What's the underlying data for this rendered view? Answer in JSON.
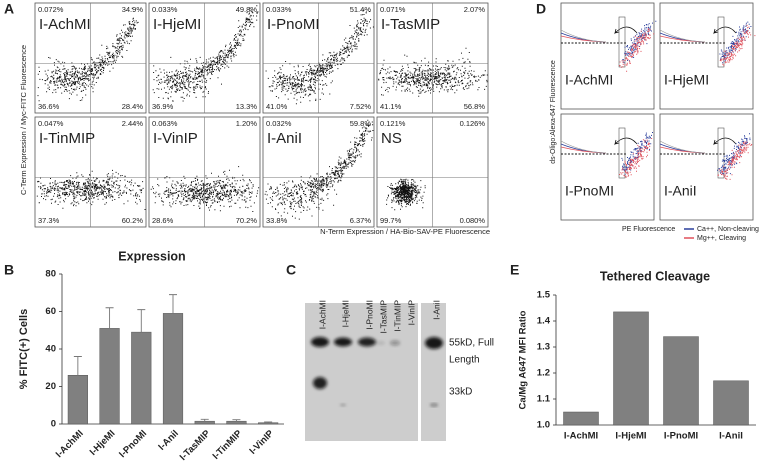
{
  "panel_a": {
    "label": "A",
    "y_label": "C-Term Expression / Myc-FITC Fluorescence",
    "x_label": "N-Term Expression / HA-Bio-SAV-PE Fluorescence",
    "plots": [
      {
        "name": "I-AchMI",
        "quadrants": [
          "0.072%",
          "34.9%",
          "36.6%",
          "28.4%"
        ]
      },
      {
        "name": "I-HjeMI",
        "quadrants": [
          "0.033%",
          "49.8%",
          "36.9%",
          "13.3%"
        ]
      },
      {
        "name": "I-PnoMI",
        "quadrants": [
          "0.033%",
          "51.4%",
          "41.0%",
          "7.52%"
        ]
      },
      {
        "name": "I-TasMIP",
        "quadrants": [
          "0.071%",
          "2.07%",
          "41.1%",
          "56.8%"
        ]
      },
      {
        "name": "I-TinMIP",
        "quadrants": [
          "0.047%",
          "2.44%",
          "37.3%",
          "60.2%"
        ]
      },
      {
        "name": "I-VinIP",
        "quadrants": [
          "0.063%",
          "1.20%",
          "28.6%",
          "70.2%"
        ]
      },
      {
        "name": "I-AniI",
        "quadrants": [
          "0.032%",
          "59.8%",
          "33.8%",
          "6.37%"
        ]
      },
      {
        "name": "NS",
        "quadrants": [
          "0.121%",
          "0.126%",
          "99.7%",
          "0.080%"
        ]
      }
    ]
  },
  "panel_c": {
    "label": "C",
    "lanes": [
      "I-AchMI",
      "I-HjeMI",
      "I-PnoMI",
      "I-TasMIP",
      "I-TinMIP",
      "I-VinIP",
      "I-AniI"
    ],
    "annotations": [
      "55kD, Full",
      "Length",
      "33kD"
    ]
  },
  "panel_d": {
    "label": "D",
    "y_label": "ds-Oligo:Alexa-647 Fluorescence",
    "x_label": "PE Fluorescence",
    "plots": [
      "I-AchMI",
      "I-HjeMI",
      "I-PnoMI",
      "I-AniI"
    ],
    "legend": [
      {
        "name": "Ca++, Non-cleaving",
        "color": "#2b3f9c"
      },
      {
        "name": "Mg++, Cleaving",
        "color": "#e0505a"
      }
    ]
  },
  "chart_data": [
    {
      "type": "bar",
      "label": "B",
      "title": "Expression",
      "y_label": "% FITC(+) Cells",
      "categories": [
        "I-AchMI",
        "I-HjeMI",
        "I-PnoMI",
        "I-AniI",
        "I-TasMIP",
        "I-TinMIP",
        "I-VinIP"
      ],
      "values": [
        26,
        51,
        49,
        59,
        1.5,
        1.5,
        0.7
      ],
      "errors": [
        10,
        11,
        12,
        10,
        1,
        0.8,
        0.4
      ],
      "color": "#808080",
      "ylim": [
        0,
        80
      ],
      "yticks": [
        0,
        20,
        40,
        60,
        80
      ]
    },
    {
      "type": "bar",
      "label": "E",
      "title": "Tethered Cleavage",
      "y_label": "Ca/Mg A647 MFI Ratio",
      "categories": [
        "I-AchMI",
        "I-HjeMI",
        "I-PnoMI",
        "I-AniI"
      ],
      "values": [
        1.05,
        1.435,
        1.34,
        1.17
      ],
      "color": "#808080",
      "ylim": [
        1,
        1.5
      ],
      "yticks": [
        {
          "value": 1,
          "label": "1.0"
        },
        1.1,
        1.2,
        1.3,
        1.4,
        1.5
      ]
    }
  ]
}
